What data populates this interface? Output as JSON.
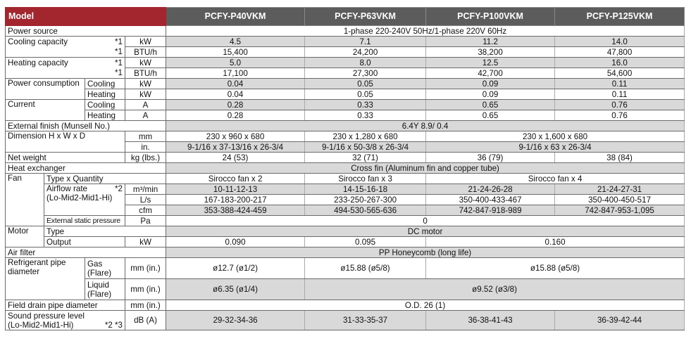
{
  "header": {
    "model_label": "Model",
    "models": [
      "PCFY-P40VKM",
      "PCFY-P63VKM",
      "PCFY-P100VKM",
      "PCFY-P125VKM"
    ]
  },
  "power_source": {
    "label": "Power source",
    "value": "1-phase 220-240V 50Hz/1-phase 220V 60Hz"
  },
  "cooling_capacity": {
    "label": "Cooling capacity",
    "note": "*1",
    "kw_unit": "kW",
    "btu_unit": "BTU/h",
    "kw": [
      "4.5",
      "7.1",
      "11.2",
      "14.0"
    ],
    "btu": [
      "15,400",
      "24,200",
      "38,200",
      "47,800"
    ]
  },
  "heating_capacity": {
    "label": "Heating capacity",
    "note": "*1",
    "kw_unit": "kW",
    "btu_unit": "BTU/h",
    "kw": [
      "5.0",
      "8.0",
      "12.5",
      "16.0"
    ],
    "btu": [
      "17,100",
      "27,300",
      "42,700",
      "54,600"
    ]
  },
  "power_consumption": {
    "label": "Power consumption",
    "cooling_label": "Cooling",
    "heating_label": "Heating",
    "unit": "kW",
    "cooling": [
      "0.04",
      "0.05",
      "0.09",
      "0.11"
    ],
    "heating": [
      "0.04",
      "0.05",
      "0.09",
      "0.11"
    ]
  },
  "current": {
    "label": "Current",
    "cooling_label": "Cooling",
    "heating_label": "Heating",
    "unit": "A",
    "cooling": [
      "0.28",
      "0.33",
      "0.65",
      "0.76"
    ],
    "heating": [
      "0.28",
      "0.33",
      "0.65",
      "0.76"
    ]
  },
  "external_finish": {
    "label": "External finish (Munsell No.)",
    "value": "6.4Y 8.9/ 0.4"
  },
  "dimension": {
    "label": "Dimension H x W x D",
    "mm_unit": "mm",
    "in_unit": "in.",
    "mm": [
      "230 x 960 x 680",
      "230 x 1,280 x 680",
      "230 x 1,600 x 680"
    ],
    "in": [
      "9-1/16 x 37-13/16 x 26-3/4",
      "9-1/16 x 50-3/8 x 26-3/4",
      "9-1/16 x 63 x 26-3/4"
    ]
  },
  "net_weight": {
    "label": "Net weight",
    "unit": "kg (lbs.)",
    "values": [
      "24 (53)",
      "32 (71)",
      "36 (79)",
      "38 (84)"
    ]
  },
  "heat_exchanger": {
    "label": "Heat exchanger",
    "value": "Cross fin (Aluminum fin and copper tube)"
  },
  "fan": {
    "label": "Fan",
    "type_label": "Type x Quantity",
    "types": [
      "Sirocco fan x 2",
      "Sirocco fan x 3",
      "Sirocco fan x 4"
    ],
    "airflow_label": "Airflow rate",
    "airflow_note": "*2",
    "airflow_sub": "(Lo-Mid2-Mid1-Hi)",
    "m3_unit": "m³/min",
    "ls_unit": "L/s",
    "cfm_unit": "cfm",
    "m3": [
      "10-11-12-13",
      "14-15-16-18",
      "21-24-26-28",
      "21-24-27-31"
    ],
    "ls": [
      "167-183-200-217",
      "233-250-267-300",
      "350-400-433-467",
      "350-400-450-517"
    ],
    "cfm": [
      "353-388-424-459",
      "494-530-565-636",
      "742-847-918-989",
      "742-847-953-1,095"
    ],
    "esp_label": "External static pressure",
    "esp_unit": "Pa",
    "esp": "0"
  },
  "motor": {
    "label": "Motor",
    "type_label": "Type",
    "type": "DC motor",
    "output_label": "Output",
    "output_unit": "kW",
    "output": [
      "0.090",
      "0.095",
      "0.160"
    ]
  },
  "air_filter": {
    "label": "Air filter",
    "value": "PP Honeycomb (long life)"
  },
  "refrigerant": {
    "label": "Refrigerant pipe diameter",
    "gas_label": "Gas (Flare)",
    "liquid_label": "Liquid (Flare)",
    "unit": "mm (in.)",
    "gas": [
      "ø12.7 (ø1/2)",
      "ø15.88 (ø5/8)",
      "ø15.88 (ø5/8)"
    ],
    "liquid": [
      "ø6.35 (ø1/4)",
      "ø9.52 (ø3/8)"
    ]
  },
  "drain": {
    "label": "Field drain pipe diameter",
    "unit": "mm (in.)",
    "value": "O.D. 26 (1)"
  },
  "sound": {
    "label": "Sound pressure level",
    "sub": "(Lo-Mid2-Mid1-Hi)",
    "note": "*2 *3",
    "unit": "dB (A)",
    "values": [
      "29-32-34-36",
      "31-33-35-37",
      "36-38-41-43",
      "36-39-42-44"
    ]
  }
}
